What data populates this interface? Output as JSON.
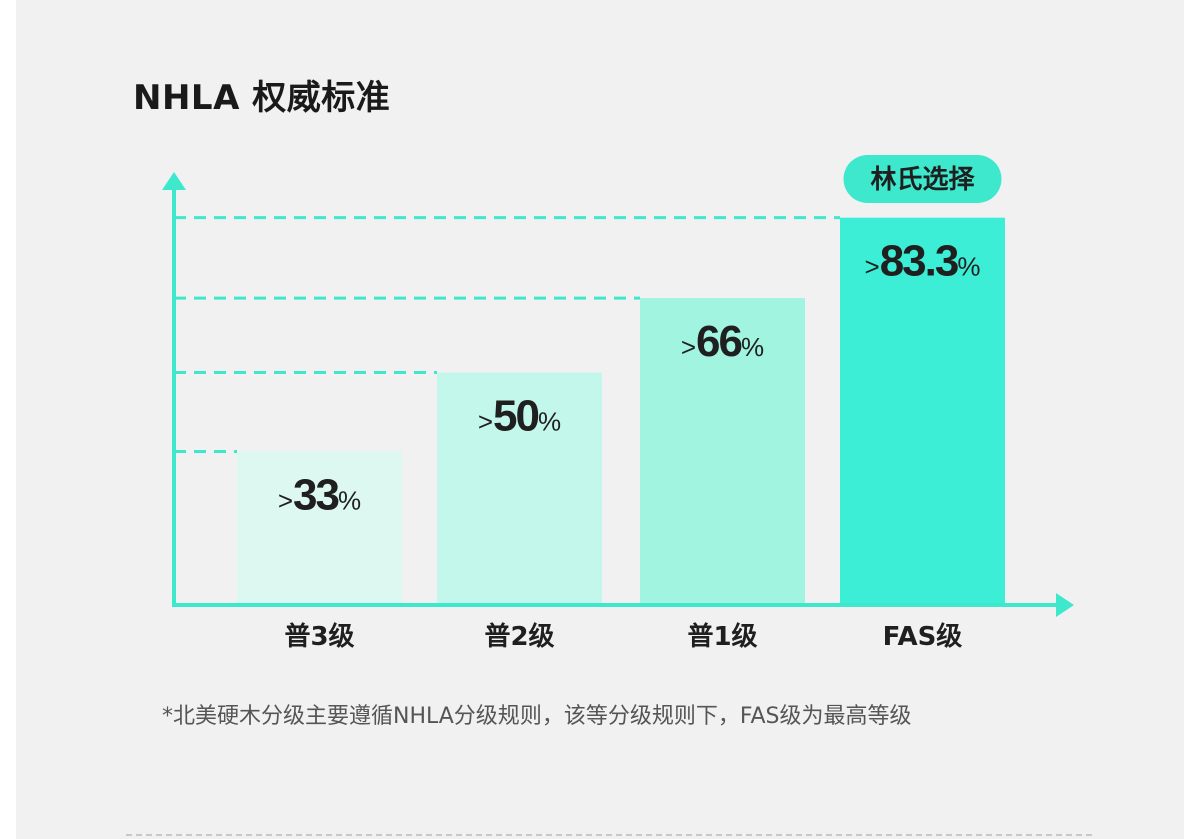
{
  "title": "NHLA 权威标准",
  "footnote": "*北美硬木分级主要遵循NHLA分级规则，该等分级规则下，FAS级为最高等级",
  "chart_data": {
    "type": "bar",
    "categories": [
      "普3级",
      "普2级",
      "普1级",
      "FAS级"
    ],
    "values": [
      33,
      50,
      66,
      83.3
    ],
    "value_labels": [
      {
        "prefix": ">",
        "number": "33",
        "unit": "%"
      },
      {
        "prefix": ">",
        "number": "50",
        "unit": "%"
      },
      {
        "prefix": ">",
        "number": "66",
        "unit": "%"
      },
      {
        "prefix": ">",
        "number": "83.3",
        "unit": "%"
      }
    ],
    "highlight_badge": "林氏选择",
    "highlight_index": 3,
    "ylim": [
      0,
      100
    ],
    "bar_colors": [
      "#ddf8f0",
      "#c4f7ec",
      "#a0f4e0",
      "#3ceed5"
    ],
    "accent_color": "#3ee8cd",
    "guide_lines": "dashed"
  }
}
